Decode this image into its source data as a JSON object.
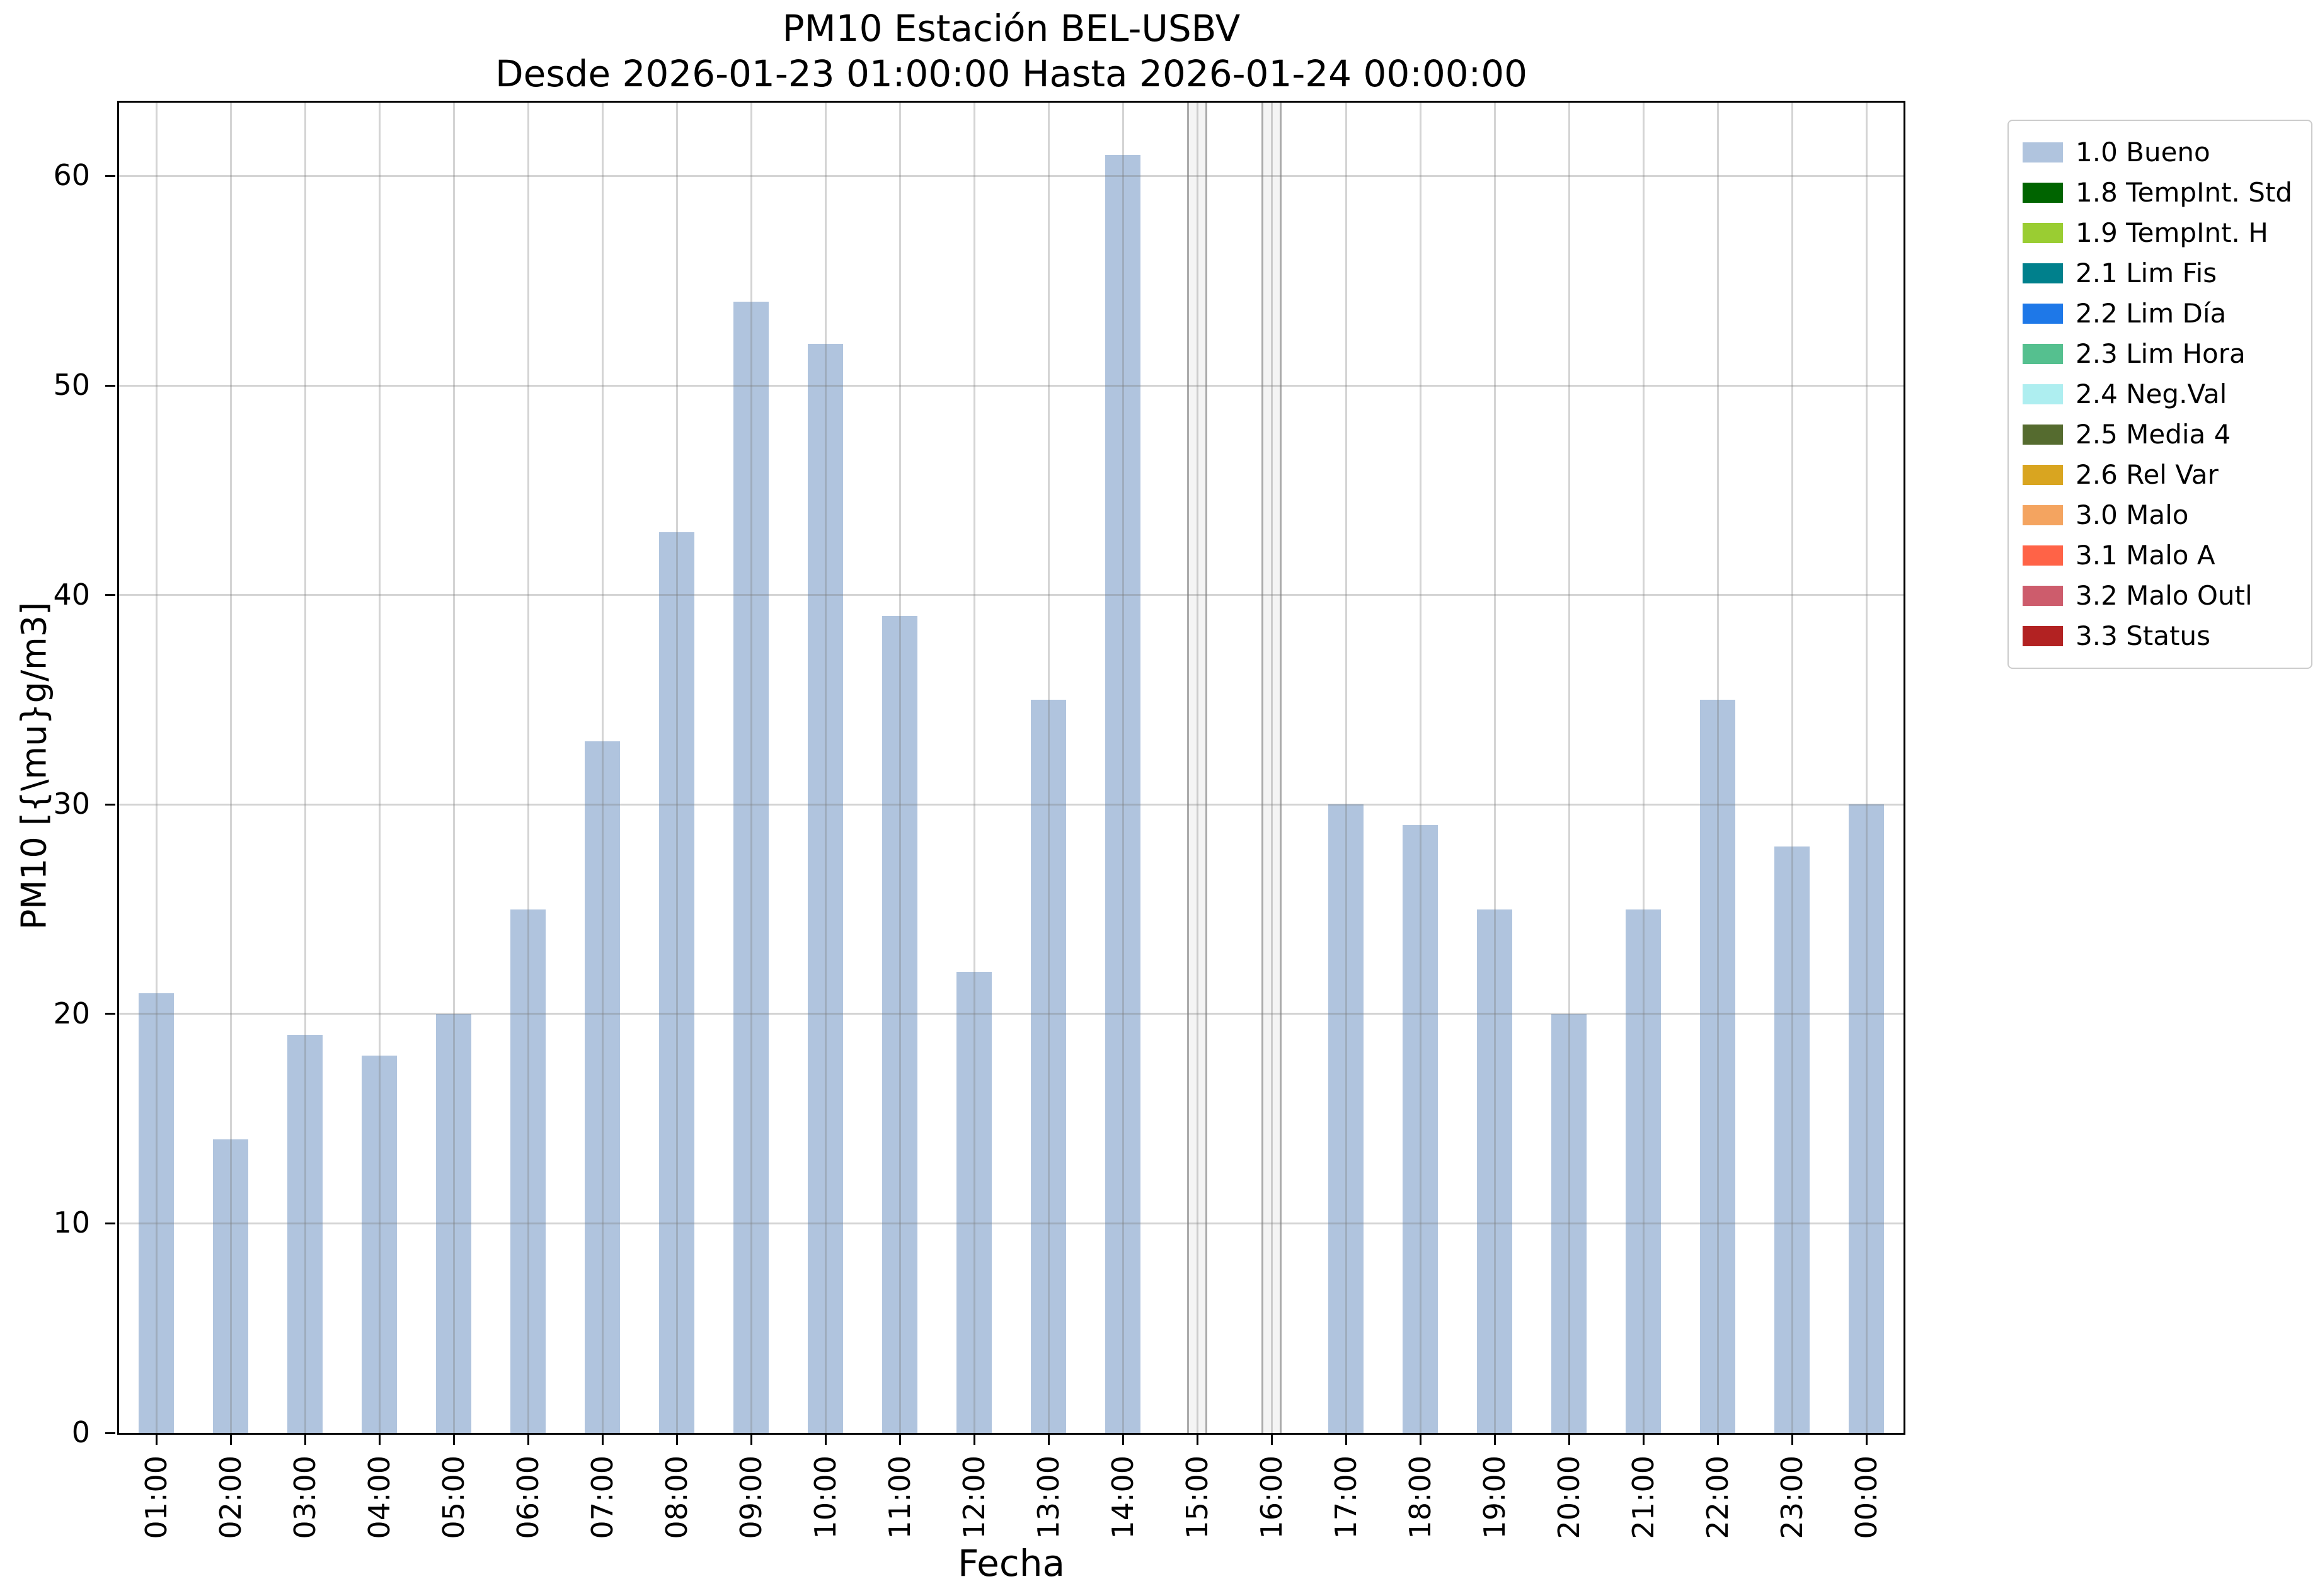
{
  "figure": {
    "background": "#ffffff"
  },
  "chart_data": {
    "type": "bar",
    "title": "PM10 Estación BEL-USBV",
    "subtitle": "Desde 2026-01-23 01:00:00 Hasta 2026-01-24 00:00:00",
    "xlabel": "Fecha",
    "ylabel": "PM10 [{\\mu}g/m3]",
    "categories": [
      "01:00",
      "02:00",
      "03:00",
      "04:00",
      "05:00",
      "06:00",
      "07:00",
      "08:00",
      "09:00",
      "10:00",
      "11:00",
      "12:00",
      "13:00",
      "14:00",
      "15:00",
      "16:00",
      "17:00",
      "18:00",
      "19:00",
      "20:00",
      "21:00",
      "22:00",
      "23:00",
      "00:00"
    ],
    "values": [
      21,
      14,
      19,
      18,
      20,
      25,
      33,
      43,
      54,
      52,
      39,
      22,
      35,
      61,
      null,
      null,
      30,
      29,
      25,
      20,
      25,
      35,
      28,
      30
    ],
    "missing_marker_categories": [
      "15:00",
      "16:00"
    ],
    "bar_color": "#b0c4de",
    "ylim": [
      0,
      63.5
    ],
    "yticks": [
      0,
      10,
      20,
      30,
      40,
      50,
      60
    ],
    "grid": true,
    "legend": {
      "position": "upper-right-outside",
      "entries": [
        {
          "label": "1.0 Bueno",
          "color": "#b0c4de"
        },
        {
          "label": "1.8 TempInt. Std",
          "color": "#006400"
        },
        {
          "label": "1.9 TempInt. H",
          "color": "#9acd32"
        },
        {
          "label": "2.1 Lim Fis",
          "color": "#00808c"
        },
        {
          "label": "2.2 Lim Día",
          "color": "#1e78e8"
        },
        {
          "label": "2.3 Lim Hora",
          "color": "#55c08f"
        },
        {
          "label": "2.4 Neg.Val",
          "color": "#aeeef0"
        },
        {
          "label": "2.5 Media 4",
          "color": "#556b2f"
        },
        {
          "label": "2.6 Rel Var",
          "color": "#d9a520"
        },
        {
          "label": "3.0 Malo",
          "color": "#f4a460"
        },
        {
          "label": "3.1 Malo A",
          "color": "#ff6347"
        },
        {
          "label": "3.2 Malo Outl",
          "color": "#cd5c6c"
        },
        {
          "label": "3.3 Status",
          "color": "#b22222"
        }
      ]
    }
  }
}
